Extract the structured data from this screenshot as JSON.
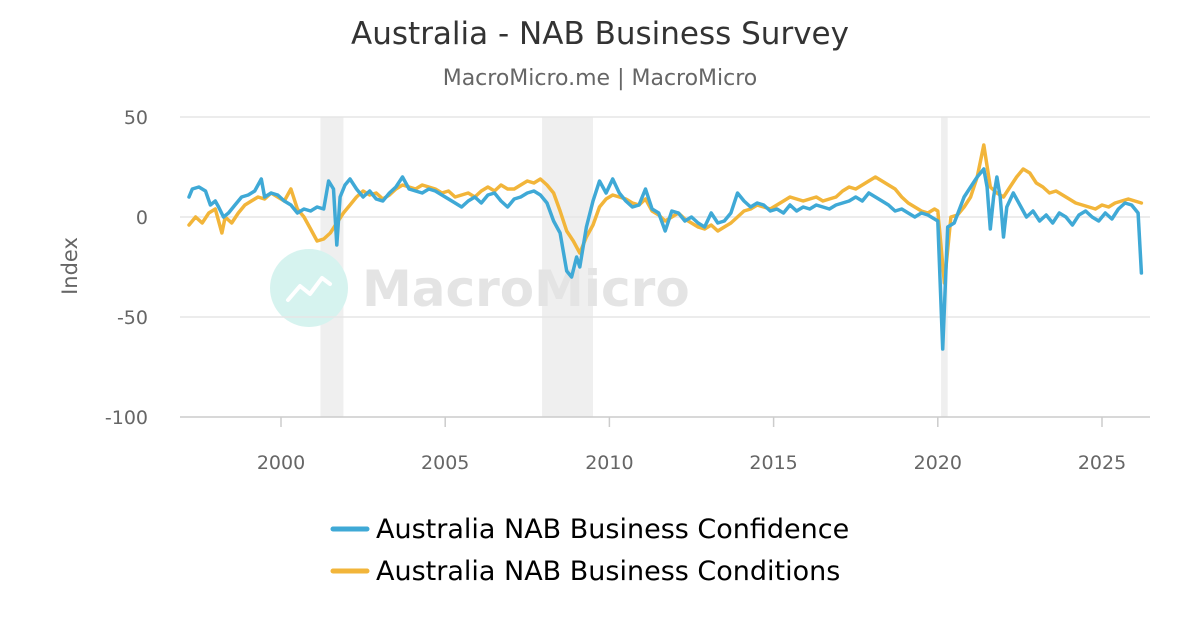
{
  "chart_data": {
    "type": "line",
    "title": "Australia - NAB Business Survey",
    "subtitle": "MacroMicro.me | MacroMicro",
    "ylabel": "Index",
    "xlabel": "",
    "ylim": [
      -100,
      50
    ],
    "xlim": [
      1997.0,
      2026.45
    ],
    "yticks": [
      "50",
      "0",
      "-50",
      "-100"
    ],
    "xticks": [
      "2000",
      "2005",
      "2010",
      "2015",
      "2020",
      "2025"
    ],
    "grid": "horizontal",
    "legend_position": "bottom",
    "watermark": "MacroMicro",
    "recession_bands": [
      [
        2001.2,
        2001.9
      ],
      [
        2007.95,
        2009.5
      ],
      [
        2020.1,
        2020.3
      ]
    ],
    "series": [
      {
        "name": "Australia NAB Business Confidence",
        "color": "#3fa9d6",
        "points": [
          [
            1997.2,
            10
          ],
          [
            1997.3,
            14
          ],
          [
            1997.5,
            15
          ],
          [
            1997.7,
            13
          ],
          [
            1997.85,
            6
          ],
          [
            1998.0,
            8
          ],
          [
            1998.1,
            5
          ],
          [
            1998.25,
            0
          ],
          [
            1998.4,
            2
          ],
          [
            1998.6,
            6
          ],
          [
            1998.8,
            10
          ],
          [
            1999.0,
            11
          ],
          [
            1999.2,
            13
          ],
          [
            1999.4,
            19
          ],
          [
            1999.5,
            10
          ],
          [
            1999.7,
            12
          ],
          [
            1999.9,
            11
          ],
          [
            2000.1,
            8
          ],
          [
            2000.3,
            6
          ],
          [
            2000.5,
            2
          ],
          [
            2000.7,
            4
          ],
          [
            2000.9,
            3
          ],
          [
            2001.1,
            5
          ],
          [
            2001.3,
            4
          ],
          [
            2001.45,
            18
          ],
          [
            2001.6,
            14
          ],
          [
            2001.7,
            -14
          ],
          [
            2001.8,
            10
          ],
          [
            2001.95,
            16
          ],
          [
            2002.1,
            19
          ],
          [
            2002.3,
            14
          ],
          [
            2002.5,
            10
          ],
          [
            2002.7,
            13
          ],
          [
            2002.9,
            9
          ],
          [
            2003.1,
            8
          ],
          [
            2003.3,
            12
          ],
          [
            2003.5,
            15
          ],
          [
            2003.7,
            20
          ],
          [
            2003.9,
            14
          ],
          [
            2004.1,
            13
          ],
          [
            2004.3,
            12
          ],
          [
            2004.5,
            14
          ],
          [
            2004.7,
            13
          ],
          [
            2004.9,
            11
          ],
          [
            2005.1,
            9
          ],
          [
            2005.3,
            7
          ],
          [
            2005.5,
            5
          ],
          [
            2005.7,
            8
          ],
          [
            2005.9,
            10
          ],
          [
            2006.1,
            7
          ],
          [
            2006.3,
            11
          ],
          [
            2006.5,
            12
          ],
          [
            2006.7,
            8
          ],
          [
            2006.9,
            5
          ],
          [
            2007.1,
            9
          ],
          [
            2007.3,
            10
          ],
          [
            2007.5,
            12
          ],
          [
            2007.7,
            13
          ],
          [
            2007.9,
            11
          ],
          [
            2008.1,
            7
          ],
          [
            2008.3,
            -2
          ],
          [
            2008.5,
            -8
          ],
          [
            2008.7,
            -27
          ],
          [
            2008.85,
            -30
          ],
          [
            2009.0,
            -20
          ],
          [
            2009.1,
            -25
          ],
          [
            2009.3,
            -5
          ],
          [
            2009.5,
            8
          ],
          [
            2009.7,
            18
          ],
          [
            2009.9,
            12
          ],
          [
            2010.1,
            19
          ],
          [
            2010.3,
            12
          ],
          [
            2010.5,
            8
          ],
          [
            2010.7,
            5
          ],
          [
            2010.9,
            6
          ],
          [
            2011.1,
            14
          ],
          [
            2011.3,
            4
          ],
          [
            2011.5,
            2
          ],
          [
            2011.7,
            -7
          ],
          [
            2011.9,
            3
          ],
          [
            2012.1,
            2
          ],
          [
            2012.3,
            -2
          ],
          [
            2012.5,
            0
          ],
          [
            2012.7,
            -3
          ],
          [
            2012.9,
            -5
          ],
          [
            2013.1,
            2
          ],
          [
            2013.3,
            -3
          ],
          [
            2013.5,
            -2
          ],
          [
            2013.7,
            2
          ],
          [
            2013.9,
            12
          ],
          [
            2014.1,
            8
          ],
          [
            2014.3,
            5
          ],
          [
            2014.5,
            7
          ],
          [
            2014.7,
            6
          ],
          [
            2014.9,
            3
          ],
          [
            2015.1,
            4
          ],
          [
            2015.3,
            2
          ],
          [
            2015.5,
            6
          ],
          [
            2015.7,
            3
          ],
          [
            2015.9,
            5
          ],
          [
            2016.1,
            4
          ],
          [
            2016.3,
            6
          ],
          [
            2016.5,
            5
          ],
          [
            2016.7,
            4
          ],
          [
            2016.9,
            6
          ],
          [
            2017.1,
            7
          ],
          [
            2017.3,
            8
          ],
          [
            2017.5,
            10
          ],
          [
            2017.7,
            8
          ],
          [
            2017.9,
            12
          ],
          [
            2018.1,
            10
          ],
          [
            2018.3,
            8
          ],
          [
            2018.5,
            6
          ],
          [
            2018.7,
            3
          ],
          [
            2018.9,
            4
          ],
          [
            2019.1,
            2
          ],
          [
            2019.3,
            0
          ],
          [
            2019.5,
            2
          ],
          [
            2019.7,
            1
          ],
          [
            2019.9,
            -1
          ],
          [
            2020.0,
            -2
          ],
          [
            2020.15,
            -66
          ],
          [
            2020.3,
            -5
          ],
          [
            2020.5,
            -3
          ],
          [
            2020.8,
            10
          ],
          [
            2021.0,
            15
          ],
          [
            2021.2,
            20
          ],
          [
            2021.4,
            24
          ],
          [
            2021.5,
            15
          ],
          [
            2021.6,
            -6
          ],
          [
            2021.7,
            10
          ],
          [
            2021.8,
            20
          ],
          [
            2021.9,
            10
          ],
          [
            2022.0,
            -10
          ],
          [
            2022.1,
            5
          ],
          [
            2022.3,
            12
          ],
          [
            2022.5,
            6
          ],
          [
            2022.7,
            0
          ],
          [
            2022.9,
            3
          ],
          [
            2023.1,
            -2
          ],
          [
            2023.3,
            1
          ],
          [
            2023.5,
            -3
          ],
          [
            2023.7,
            2
          ],
          [
            2023.9,
            0
          ],
          [
            2024.1,
            -4
          ],
          [
            2024.3,
            1
          ],
          [
            2024.5,
            3
          ],
          [
            2024.7,
            0
          ],
          [
            2024.9,
            -2
          ],
          [
            2025.1,
            2
          ],
          [
            2025.3,
            -1
          ],
          [
            2025.5,
            4
          ],
          [
            2025.7,
            7
          ],
          [
            2025.9,
            6
          ],
          [
            2026.1,
            2
          ],
          [
            2026.2,
            -28
          ]
        ]
      },
      {
        "name": "Australia NAB Business Conditions",
        "color": "#f2b53a",
        "points": [
          [
            1997.2,
            -4
          ],
          [
            1997.4,
            0
          ],
          [
            1997.6,
            -3
          ],
          [
            1997.8,
            2
          ],
          [
            1998.0,
            4
          ],
          [
            1998.2,
            -8
          ],
          [
            1998.3,
            0
          ],
          [
            1998.5,
            -3
          ],
          [
            1998.7,
            2
          ],
          [
            1998.9,
            6
          ],
          [
            1999.1,
            8
          ],
          [
            1999.3,
            10
          ],
          [
            1999.5,
            9
          ],
          [
            1999.7,
            12
          ],
          [
            1999.9,
            10
          ],
          [
            2000.1,
            8
          ],
          [
            2000.3,
            14
          ],
          [
            2000.5,
            4
          ],
          [
            2000.7,
            0
          ],
          [
            2000.9,
            -6
          ],
          [
            2001.1,
            -12
          ],
          [
            2001.3,
            -11
          ],
          [
            2001.5,
            -8
          ],
          [
            2001.7,
            -3
          ],
          [
            2001.9,
            2
          ],
          [
            2002.1,
            6
          ],
          [
            2002.3,
            10
          ],
          [
            2002.5,
            13
          ],
          [
            2002.7,
            11
          ],
          [
            2002.9,
            12
          ],
          [
            2003.1,
            9
          ],
          [
            2003.3,
            11
          ],
          [
            2003.5,
            14
          ],
          [
            2003.7,
            16
          ],
          [
            2003.9,
            15
          ],
          [
            2004.1,
            14
          ],
          [
            2004.3,
            16
          ],
          [
            2004.5,
            15
          ],
          [
            2004.7,
            14
          ],
          [
            2004.9,
            12
          ],
          [
            2005.1,
            13
          ],
          [
            2005.3,
            10
          ],
          [
            2005.5,
            11
          ],
          [
            2005.7,
            12
          ],
          [
            2005.9,
            10
          ],
          [
            2006.1,
            13
          ],
          [
            2006.3,
            15
          ],
          [
            2006.5,
            13
          ],
          [
            2006.7,
            16
          ],
          [
            2006.9,
            14
          ],
          [
            2007.1,
            14
          ],
          [
            2007.3,
            16
          ],
          [
            2007.5,
            18
          ],
          [
            2007.7,
            17
          ],
          [
            2007.9,
            19
          ],
          [
            2008.1,
            16
          ],
          [
            2008.3,
            12
          ],
          [
            2008.5,
            3
          ],
          [
            2008.7,
            -7
          ],
          [
            2008.9,
            -12
          ],
          [
            2009.1,
            -18
          ],
          [
            2009.3,
            -10
          ],
          [
            2009.5,
            -4
          ],
          [
            2009.7,
            5
          ],
          [
            2009.9,
            9
          ],
          [
            2010.1,
            11
          ],
          [
            2010.3,
            10
          ],
          [
            2010.5,
            9
          ],
          [
            2010.7,
            7
          ],
          [
            2010.9,
            6
          ],
          [
            2011.1,
            9
          ],
          [
            2011.3,
            3
          ],
          [
            2011.5,
            1
          ],
          [
            2011.7,
            -2
          ],
          [
            2011.9,
            0
          ],
          [
            2012.1,
            2
          ],
          [
            2012.3,
            -1
          ],
          [
            2012.5,
            -3
          ],
          [
            2012.7,
            -5
          ],
          [
            2012.9,
            -6
          ],
          [
            2013.1,
            -4
          ],
          [
            2013.3,
            -7
          ],
          [
            2013.5,
            -5
          ],
          [
            2013.7,
            -3
          ],
          [
            2013.9,
            0
          ],
          [
            2014.1,
            3
          ],
          [
            2014.3,
            4
          ],
          [
            2014.5,
            6
          ],
          [
            2014.7,
            5
          ],
          [
            2014.9,
            4
          ],
          [
            2015.1,
            6
          ],
          [
            2015.3,
            8
          ],
          [
            2015.5,
            10
          ],
          [
            2015.7,
            9
          ],
          [
            2015.9,
            8
          ],
          [
            2016.1,
            9
          ],
          [
            2016.3,
            10
          ],
          [
            2016.5,
            8
          ],
          [
            2016.7,
            9
          ],
          [
            2016.9,
            10
          ],
          [
            2017.1,
            13
          ],
          [
            2017.3,
            15
          ],
          [
            2017.5,
            14
          ],
          [
            2017.7,
            16
          ],
          [
            2017.9,
            18
          ],
          [
            2018.1,
            20
          ],
          [
            2018.3,
            18
          ],
          [
            2018.5,
            16
          ],
          [
            2018.7,
            14
          ],
          [
            2018.9,
            10
          ],
          [
            2019.1,
            7
          ],
          [
            2019.3,
            5
          ],
          [
            2019.5,
            3
          ],
          [
            2019.7,
            2
          ],
          [
            2019.9,
            4
          ],
          [
            2020.0,
            3
          ],
          [
            2020.2,
            -33
          ],
          [
            2020.4,
            0
          ],
          [
            2020.6,
            1
          ],
          [
            2020.8,
            5
          ],
          [
            2021.0,
            10
          ],
          [
            2021.2,
            20
          ],
          [
            2021.4,
            36
          ],
          [
            2021.6,
            15
          ],
          [
            2021.8,
            12
          ],
          [
            2022.0,
            10
          ],
          [
            2022.2,
            15
          ],
          [
            2022.4,
            20
          ],
          [
            2022.6,
            24
          ],
          [
            2022.8,
            22
          ],
          [
            2023.0,
            17
          ],
          [
            2023.2,
            15
          ],
          [
            2023.4,
            12
          ],
          [
            2023.6,
            13
          ],
          [
            2023.8,
            11
          ],
          [
            2024.0,
            9
          ],
          [
            2024.2,
            7
          ],
          [
            2024.4,
            6
          ],
          [
            2024.6,
            5
          ],
          [
            2024.8,
            4
          ],
          [
            2025.0,
            6
          ],
          [
            2025.2,
            5
          ],
          [
            2025.4,
            7
          ],
          [
            2025.6,
            8
          ],
          [
            2025.8,
            9
          ],
          [
            2026.0,
            8
          ],
          [
            2026.2,
            7
          ]
        ]
      }
    ]
  }
}
